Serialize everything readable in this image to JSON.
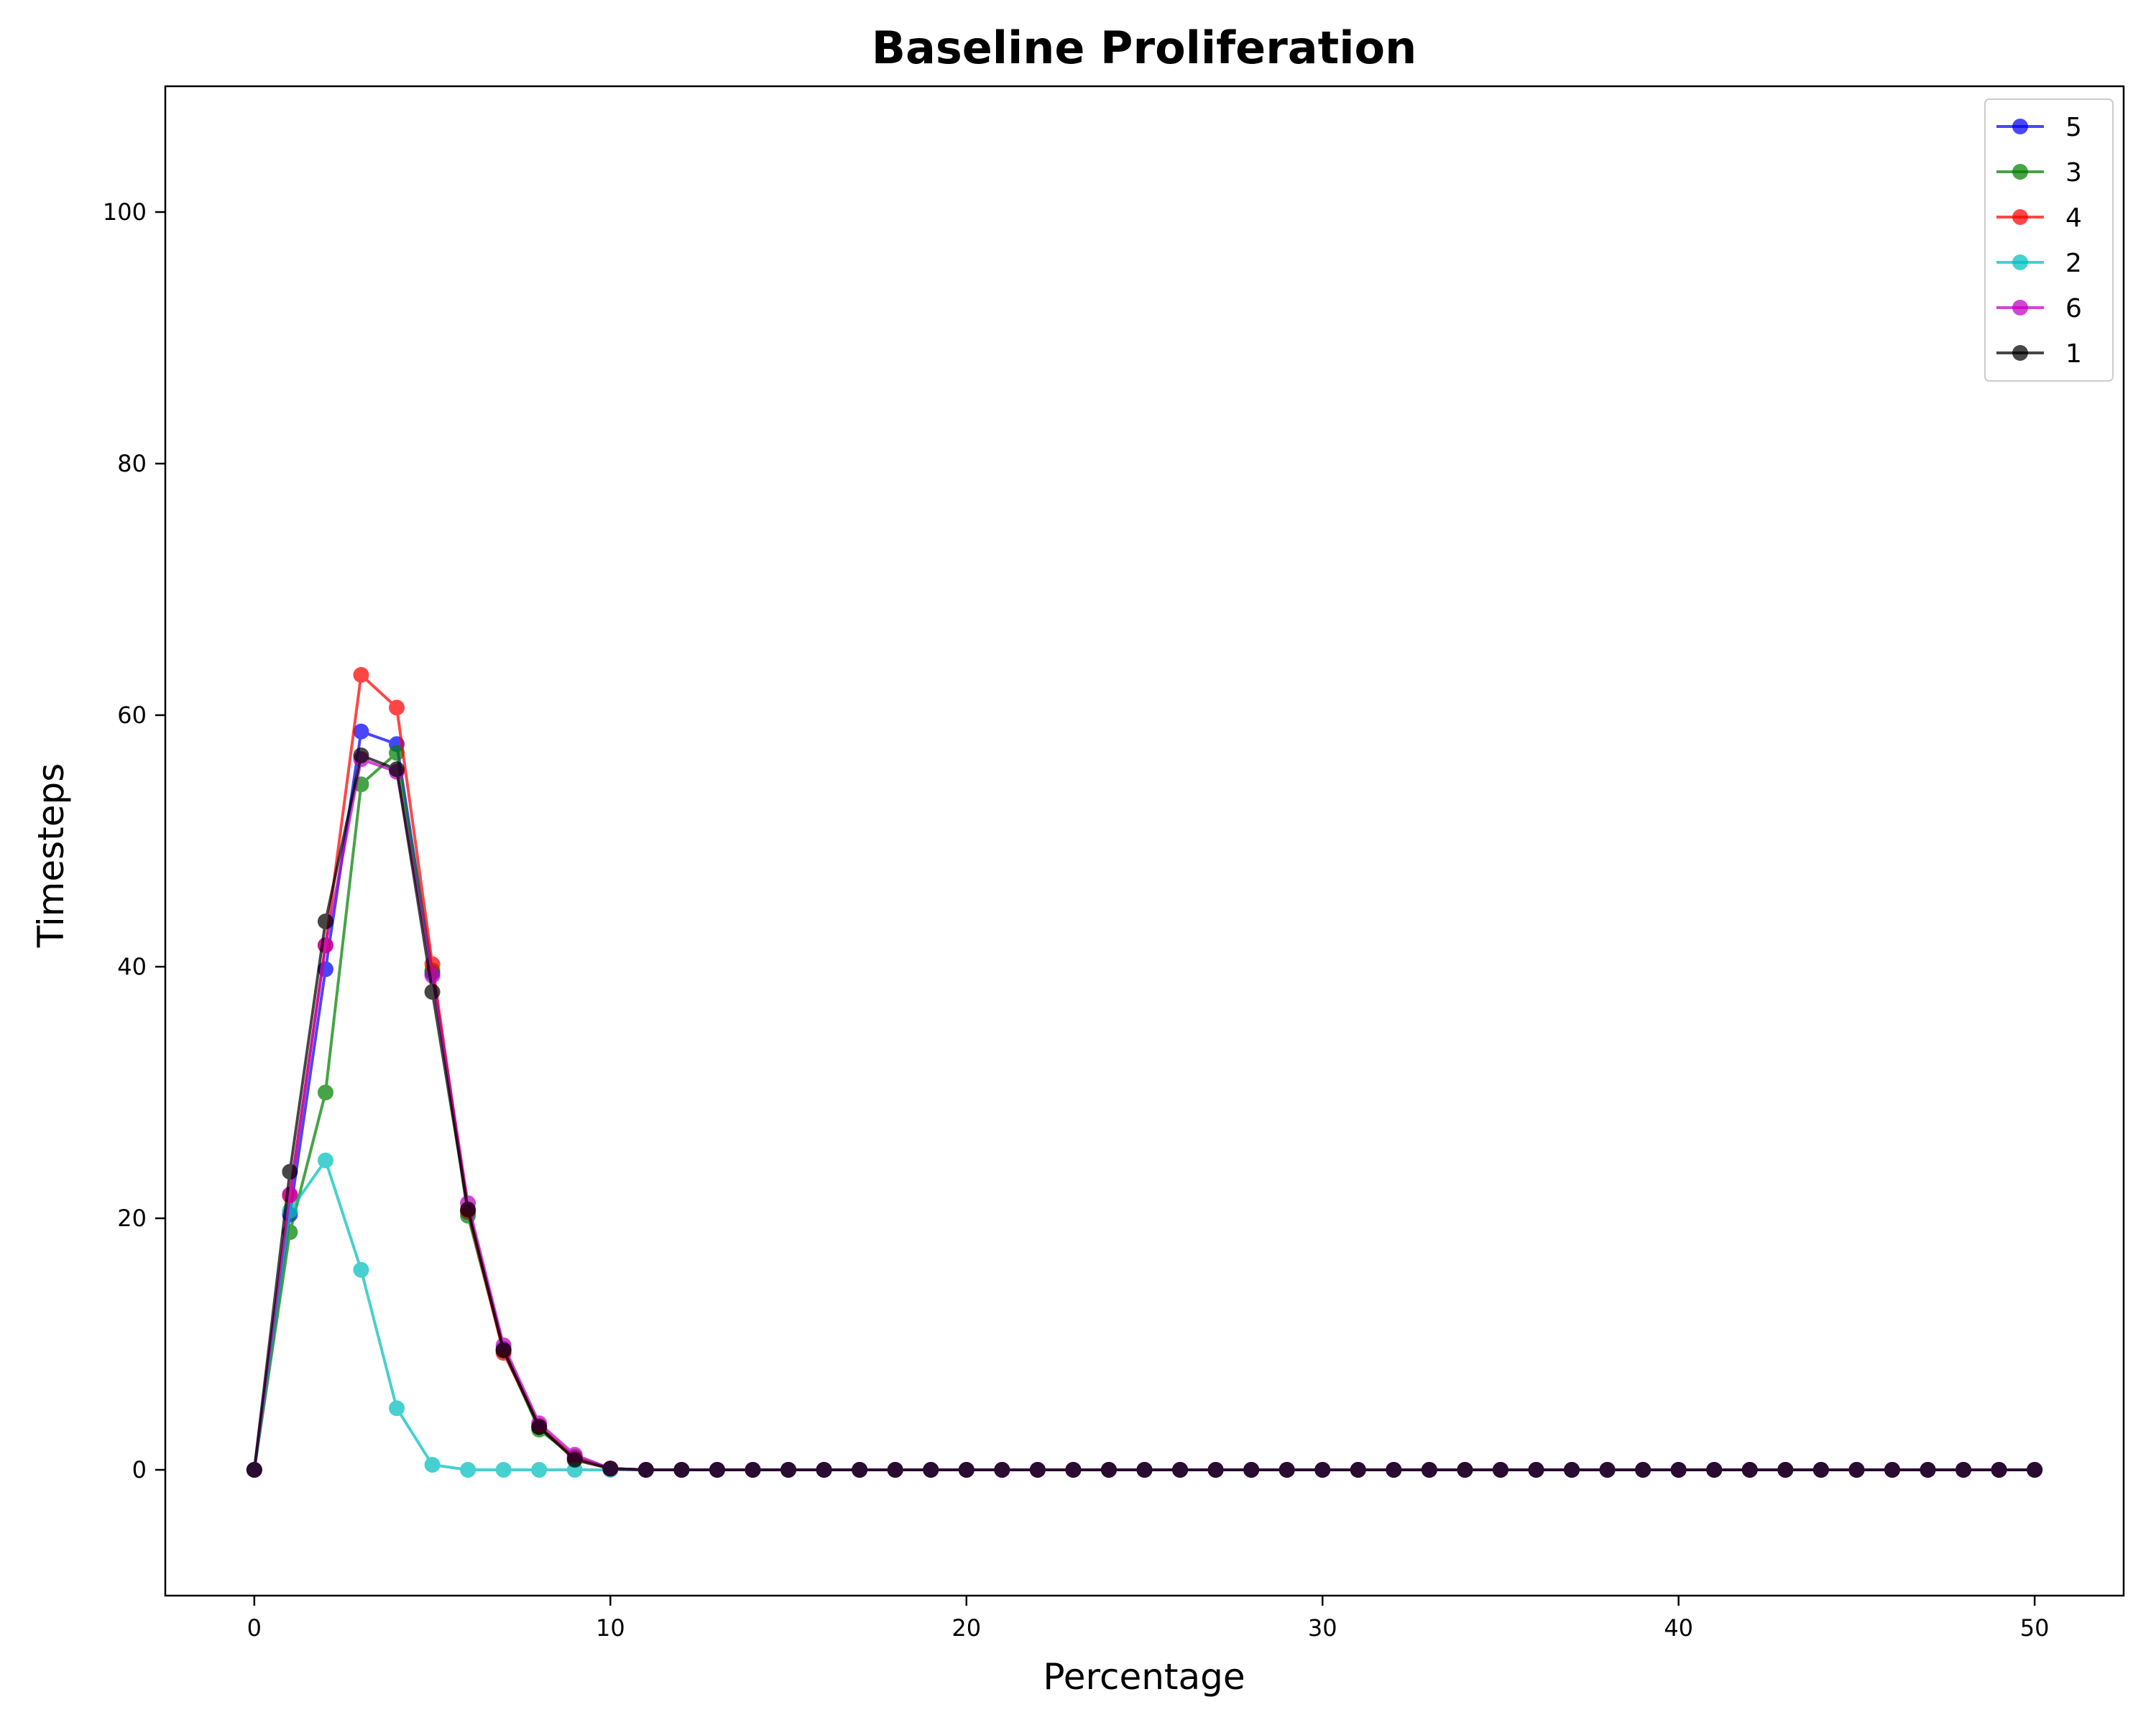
{
  "chart_data": {
    "type": "line",
    "title": "Baseline Proliferation",
    "xlabel": "Percentage",
    "ylabel": "Timesteps",
    "xlim": [
      -2.5,
      52.5
    ],
    "ylim": [
      -10,
      110
    ],
    "xticks": [
      0,
      10,
      20,
      30,
      40,
      50
    ],
    "yticks": [
      0,
      20,
      40,
      60,
      80,
      100
    ],
    "grid": false,
    "legend_position": "top-right",
    "x": [
      0,
      1,
      2,
      3,
      4,
      5,
      6,
      7,
      8,
      9,
      10,
      11,
      12,
      13,
      14,
      15,
      16,
      17,
      18,
      19,
      20,
      21,
      22,
      23,
      24,
      25,
      26,
      27,
      28,
      29,
      30,
      31,
      32,
      33,
      34,
      35,
      36,
      37,
      38,
      39,
      40,
      41,
      42,
      43,
      44,
      45,
      46,
      47,
      48,
      49,
      50
    ],
    "series": [
      {
        "name": "5",
        "color": "#0000ff",
        "values": [
          0,
          20.3,
          39.8,
          58.7,
          57.7,
          39.5,
          20.5,
          9.6,
          3.4,
          1.0,
          0.1,
          0,
          0,
          0,
          0,
          0,
          0,
          0,
          0,
          0,
          0,
          0,
          0,
          0,
          0,
          0,
          0,
          0,
          0,
          0,
          0,
          0,
          0,
          0,
          0,
          0,
          0,
          0,
          0,
          0,
          0,
          0,
          0,
          0,
          0,
          0,
          0,
          0,
          0,
          0,
          0
        ]
      },
      {
        "name": "3",
        "color": "#008000",
        "values": [
          0,
          18.9,
          30.0,
          54.5,
          57.0,
          39.7,
          20.2,
          9.5,
          3.2,
          1.0,
          0.1,
          0,
          0,
          0,
          0,
          0,
          0,
          0,
          0,
          0,
          0,
          0,
          0,
          0,
          0,
          0,
          0,
          0,
          0,
          0,
          0,
          0,
          0,
          0,
          0,
          0,
          0,
          0,
          0,
          0,
          0,
          0,
          0,
          0,
          0,
          0,
          0,
          0,
          0,
          0,
          0
        ]
      },
      {
        "name": "4",
        "color": "#ff0000",
        "values": [
          0,
          21.8,
          41.7,
          63.2,
          60.6,
          40.2,
          20.6,
          9.3,
          3.5,
          0.9,
          0.1,
          0,
          0,
          0,
          0,
          0,
          0,
          0,
          0,
          0,
          0,
          0,
          0,
          0,
          0,
          0,
          0,
          0,
          0,
          0,
          0,
          0,
          0,
          0,
          0,
          0,
          0,
          0,
          0,
          0,
          0,
          0,
          0,
          0,
          0,
          0,
          0,
          0,
          0,
          0,
          0
        ]
      },
      {
        "name": "2",
        "color": "#00bfbf",
        "values": [
          0,
          20.6,
          24.6,
          15.9,
          4.9,
          0.4,
          0,
          0,
          0,
          0,
          0,
          0,
          0,
          0,
          0,
          0,
          0,
          0,
          0,
          0,
          0,
          0,
          0,
          0,
          0,
          0,
          0,
          0,
          0,
          0,
          0,
          0,
          0,
          0,
          0,
          0,
          0,
          0,
          0,
          0,
          0,
          0,
          0,
          0,
          0,
          0,
          0,
          0,
          0,
          0,
          0
        ]
      },
      {
        "name": "6",
        "color": "#bf00bf",
        "values": [
          0,
          21.9,
          41.7,
          56.5,
          55.5,
          39.3,
          21.2,
          9.9,
          3.7,
          1.2,
          0.1,
          0,
          0,
          0,
          0,
          0,
          0,
          0,
          0,
          0,
          0,
          0,
          0,
          0,
          0,
          0,
          0,
          0,
          0,
          0,
          0,
          0,
          0,
          0,
          0,
          0,
          0,
          0,
          0,
          0,
          0,
          0,
          0,
          0,
          0,
          0,
          0,
          0,
          0,
          0,
          0
        ]
      },
      {
        "name": "1",
        "color": "#000000",
        "values": [
          0,
          23.7,
          43.6,
          56.8,
          55.7,
          38.0,
          20.7,
          9.5,
          3.4,
          0.8,
          0.1,
          0,
          0,
          0,
          0,
          0,
          0,
          0,
          0,
          0,
          0,
          0,
          0,
          0,
          0,
          0,
          0,
          0,
          0,
          0,
          0,
          0,
          0,
          0,
          0,
          0,
          0,
          0,
          0,
          0,
          0,
          0,
          0,
          0,
          0,
          0,
          0,
          0,
          0,
          0,
          0
        ]
      }
    ]
  }
}
